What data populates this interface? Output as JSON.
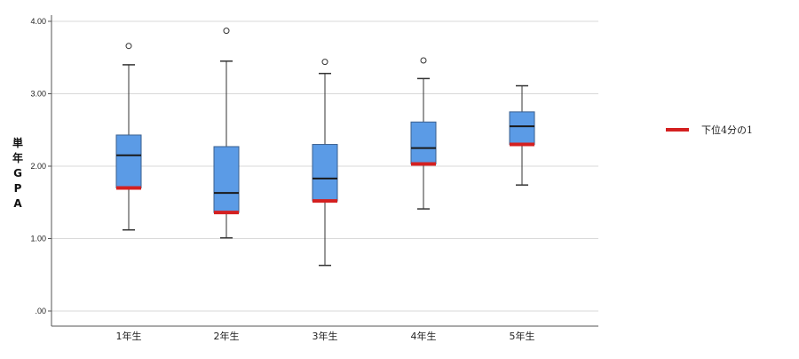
{
  "chart_data": {
    "type": "box",
    "ylabel_chars": [
      "単",
      "年",
      "G",
      "P",
      "A"
    ],
    "ylim": [
      0,
      4.0
    ],
    "yticks": [
      {
        "value": 0,
        "label": ".00"
      },
      {
        "value": 1,
        "label": "1.00"
      },
      {
        "value": 2,
        "label": "2.00"
      },
      {
        "value": 3,
        "label": "3.00"
      },
      {
        "value": 4,
        "label": "4.00"
      }
    ],
    "grid": true,
    "categories": [
      "1年生",
      "2年生",
      "3年生",
      "4年生",
      "5年生"
    ],
    "boxes": [
      {
        "whisker_low": 1.12,
        "q1": 1.7,
        "median": 2.15,
        "q3": 2.43,
        "whisker_high": 3.4,
        "outliers": [
          3.66
        ]
      },
      {
        "whisker_low": 1.01,
        "q1": 1.36,
        "median": 1.63,
        "q3": 2.27,
        "whisker_high": 3.45,
        "outliers": [
          3.87
        ]
      },
      {
        "whisker_low": 0.63,
        "q1": 1.52,
        "median": 1.83,
        "q3": 2.3,
        "whisker_high": 3.28,
        "outliers": [
          3.44
        ]
      },
      {
        "whisker_low": 1.41,
        "q1": 2.03,
        "median": 2.25,
        "q3": 2.61,
        "whisker_high": 3.21,
        "outliers": [
          3.46
        ]
      },
      {
        "whisker_low": 1.74,
        "q1": 2.3,
        "median": 2.55,
        "q3": 2.75,
        "whisker_high": 3.11,
        "outliers": []
      }
    ],
    "colors": {
      "box_fill": "#5b9be6",
      "box_stroke": "#3a5f8f",
      "marker": "#d42020",
      "grid": "#d9d9d9",
      "axis": "#555555"
    },
    "legend": {
      "label": "下位4分の1",
      "placement": "right"
    }
  }
}
